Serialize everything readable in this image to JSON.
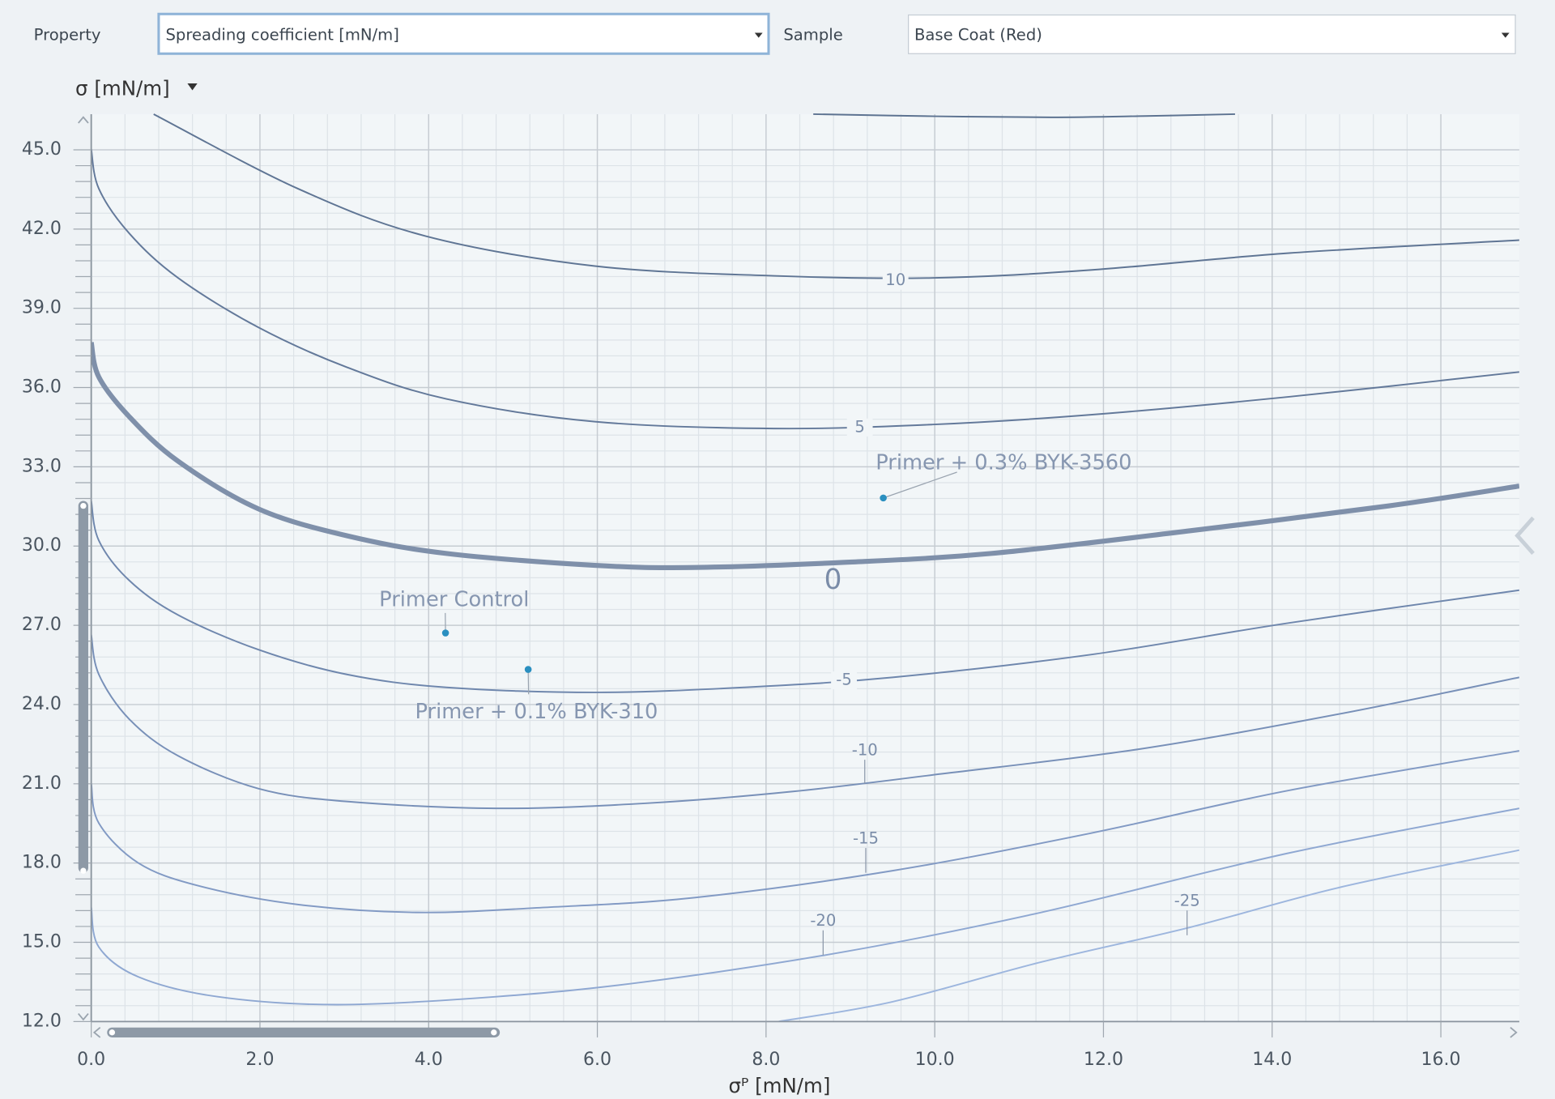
{
  "controls": {
    "property_label": "Property",
    "property_value": "Spreading coefficient  [mN/m]",
    "sample_label": "Sample",
    "sample_value": "Base Coat (Red)"
  },
  "chart_data": {
    "type": "contour",
    "ylabel": "σ [mN/m]",
    "xlabel": "σᴾ [mN/m]",
    "xlim": [
      0,
      16.93
    ],
    "ylim": [
      12,
      46.35
    ],
    "xticks": [
      {
        "value": 0,
        "label": "0.0"
      },
      {
        "value": 2,
        "label": "2.0"
      },
      {
        "value": 4,
        "label": "4.0"
      },
      {
        "value": 6,
        "label": "6.0"
      },
      {
        "value": 8,
        "label": "8.0"
      },
      {
        "value": 10,
        "label": "10.0"
      },
      {
        "value": 12,
        "label": "12.0"
      },
      {
        "value": 14,
        "label": "14.0"
      },
      {
        "value": 16,
        "label": "16.0"
      }
    ],
    "yticks": [
      {
        "value": 12,
        "label": "12.0"
      },
      {
        "value": 15,
        "label": "15.0"
      },
      {
        "value": 18,
        "label": "18.0"
      },
      {
        "value": 21,
        "label": "21.0"
      },
      {
        "value": 24,
        "label": "24.0"
      },
      {
        "value": 27,
        "label": "27.0"
      },
      {
        "value": 30,
        "label": "30.0"
      },
      {
        "value": 33,
        "label": "33.0"
      },
      {
        "value": 36,
        "label": "36.0"
      },
      {
        "value": 39,
        "label": "39.0"
      },
      {
        "value": 42,
        "label": "42.0"
      },
      {
        "value": 45,
        "label": "45.0"
      }
    ],
    "grid": true,
    "series": [
      {
        "color": "#5d7391",
        "x": [
          8.56,
          10,
          11.38,
          12.5,
          13.56
        ],
        "values": [
          46.35,
          46.27,
          46.23,
          46.28,
          46.35
        ]
      },
      {
        "name": "10",
        "color": "#5f7594",
        "x": [
          0.74,
          2.45,
          3.97,
          5.97,
          8.09,
          9.97,
          11.85,
          14.2,
          16.93
        ],
        "values": [
          46.35,
          43.53,
          41.73,
          40.6,
          40.23,
          40.15,
          40.45,
          41.09,
          41.58
        ]
      },
      {
        "name": "5",
        "color": "#63799a",
        "x": [
          0,
          0.09,
          0.45,
          1.03,
          1.98,
          3.03,
          4.21,
          5.97,
          8.09,
          9.97,
          11.85,
          14.2,
          16.93
        ],
        "values": [
          45.03,
          43.53,
          41.84,
          40.15,
          38.28,
          36.77,
          35.57,
          34.71,
          34.45,
          34.6,
          34.97,
          35.65,
          36.59
        ]
      },
      {
        "name": "0",
        "color": "#7f90aa",
        "bold": true,
        "x": [
          0,
          0.09,
          0.45,
          1.03,
          1.98,
          3.03,
          4.21,
          5.97,
          7.15,
          8.91,
          10.67,
          13.03,
          15.38,
          16.93
        ],
        "values": [
          37.71,
          36.4,
          34.9,
          33.21,
          31.41,
          30.39,
          29.72,
          29.27,
          29.19,
          29.38,
          29.72,
          30.58,
          31.52,
          32.27
        ]
      },
      {
        "name": "-5",
        "color": "#6f87ad",
        "x": [
          0,
          0.09,
          0.45,
          1.03,
          1.98,
          3.03,
          4.21,
          5.97,
          7.74,
          9.5,
          11.85,
          14.2,
          16.93
        ],
        "values": [
          31.71,
          30.21,
          28.7,
          27.39,
          26.08,
          25.14,
          24.65,
          24.46,
          24.65,
          25.03,
          25.89,
          27.09,
          28.33
        ]
      },
      {
        "name": "-10",
        "color": "#7890b8",
        "x": [
          0,
          0.09,
          0.45,
          1.03,
          1.98,
          3.03,
          4.8,
          6.56,
          8.32,
          10.09,
          12.44,
          14.79,
          16.93
        ],
        "values": [
          26.64,
          25.14,
          23.45,
          22.06,
          20.82,
          20.33,
          20.07,
          20.26,
          20.71,
          21.38,
          22.32,
          23.64,
          25.03
        ]
      },
      {
        "name": "-15",
        "color": "#829ac4",
        "x": [
          0,
          0.09,
          0.56,
          1.27,
          2.45,
          3.86,
          5.38,
          7.15,
          9.5,
          11.85,
          14.2,
          16.93
        ],
        "values": [
          21.01,
          19.51,
          18.0,
          17.14,
          16.43,
          16.13,
          16.32,
          16.69,
          17.71,
          19.13,
          20.75,
          22.25
        ]
      },
      {
        "name": "-20",
        "color": "#8fa8d2",
        "x": [
          0,
          0.09,
          0.56,
          1.5,
          2.92,
          4.8,
          6.56,
          8.91,
          11.26,
          14.2,
          16.93
        ],
        "values": [
          16.32,
          14.82,
          13.69,
          12.94,
          12.64,
          12.94,
          13.5,
          14.63,
          16.13,
          18.38,
          20.07
        ]
      },
      {
        "name": "-25",
        "color": "#9db6de",
        "x": [
          8.15,
          9.5,
          11.26,
          13.03,
          14.79,
          16.93
        ],
        "values": [
          12.0,
          12.75,
          14.25,
          15.57,
          17.07,
          18.49
        ]
      }
    ],
    "point_color": "#2a8fc0",
    "points": [
      {
        "label": "Primer Control",
        "x": 4.2,
        "y": 26.71
      },
      {
        "label": "Primer + 0.1% BYK-310",
        "x": 5.18,
        "y": 25.33
      },
      {
        "label": "Primer + 0.3% BYK-3560",
        "x": 9.39,
        "y": 31.82
      }
    ]
  }
}
